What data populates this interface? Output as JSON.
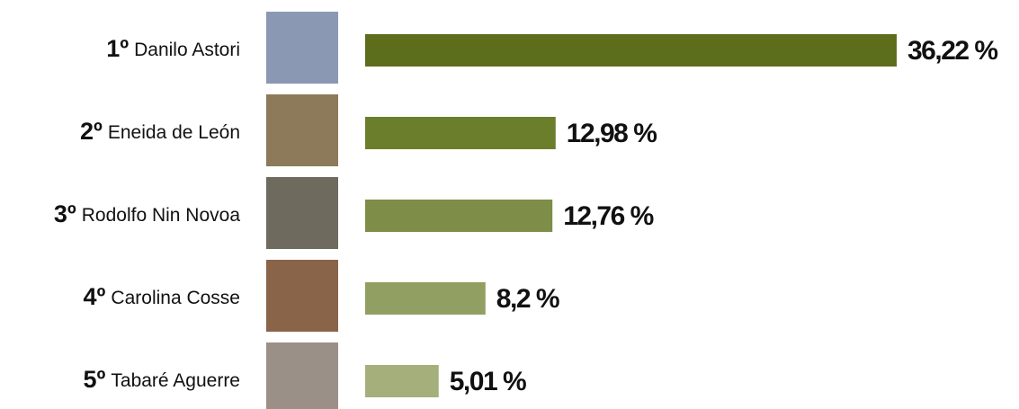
{
  "chart_data": {
    "type": "bar",
    "orientation": "horizontal",
    "ranks": [
      "1º",
      "2º",
      "3º",
      "4º",
      "5º"
    ],
    "categories": [
      "Danilo Astori",
      "Eneida de León",
      "Rodolfo Nin Novoa",
      "Carolina Cosse",
      "Tabaré Aguerre"
    ],
    "values": [
      36.22,
      12.98,
      12.76,
      8.2,
      5.01
    ],
    "value_labels": [
      "36,22 %",
      "12,98 %",
      "12,76 %",
      "8,2 %",
      "5,01 %"
    ],
    "colors": [
      "#5c6e1b",
      "#6b7e2b",
      "#7e8e48",
      "#919f63",
      "#a4af7c"
    ]
  }
}
